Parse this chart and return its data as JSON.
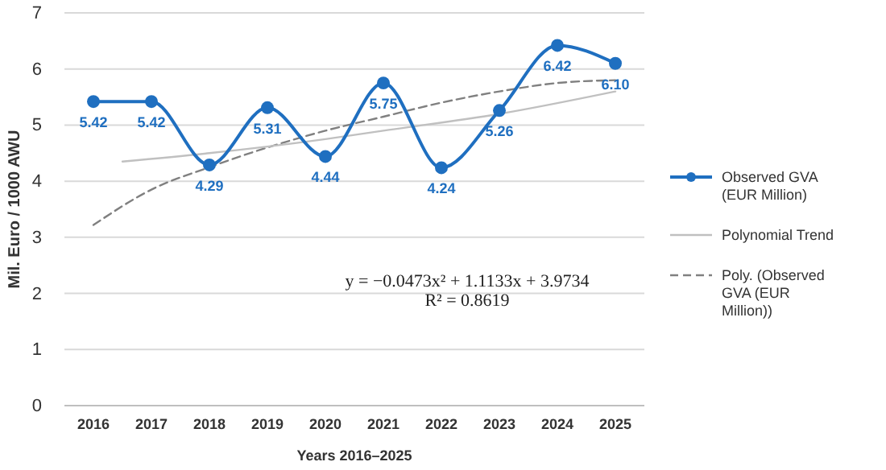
{
  "chart_data": {
    "type": "line",
    "xlabel": "Years 2016–2025",
    "ylabel": "Mil. Euro / 1000 AWU",
    "xlim": [
      2015.5,
      2025.5
    ],
    "xticks": [
      2016,
      2017,
      2018,
      2019,
      2020,
      2021,
      2022,
      2023,
      2024,
      2025
    ],
    "ylim": [
      0,
      7
    ],
    "yticks": [
      0,
      1,
      2,
      3,
      4,
      5,
      6,
      7
    ],
    "grid": "y",
    "legend": "right",
    "annotations": [
      "y = −0.0473x² + 1.1133x + 3.9734",
      "R² = 0.8619"
    ],
    "series": [
      {
        "name": "Observed GVA (EUR Million)",
        "color": "#1f6fc0",
        "marker": "circle",
        "line_style": "solid",
        "value_labels": [
          "5.42",
          "5.42",
          "4.29",
          "5.31",
          "4.44",
          "5.75",
          "4.24",
          "5.26",
          "6.42",
          "6.10"
        ],
        "x": [
          2016,
          2017,
          2018,
          2019,
          2020,
          2021,
          2022,
          2023,
          2024,
          2025
        ],
        "values": [
          5.42,
          5.42,
          4.29,
          5.31,
          4.44,
          5.75,
          4.24,
          5.26,
          6.42,
          6.1
        ]
      },
      {
        "name": "Polynomial Trend",
        "color": "#c0c0c0",
        "marker": "none",
        "line_style": "solid",
        "x": [
          2016.5,
          2018,
          2020,
          2021,
          2023,
          2025
        ],
        "values": [
          4.35,
          4.5,
          4.75,
          4.9,
          5.2,
          5.6
        ]
      },
      {
        "name": "Poly. (Observed GVA (EUR Million))",
        "color": "#808080",
        "marker": "none",
        "line_style": "dashed",
        "x": [
          2016,
          2017,
          2018,
          2019,
          2020,
          2021,
          2022,
          2023,
          2024,
          2025
        ],
        "values": [
          3.22,
          3.85,
          4.25,
          4.6,
          4.9,
          5.15,
          5.4,
          5.6,
          5.75,
          5.8
        ]
      }
    ]
  }
}
